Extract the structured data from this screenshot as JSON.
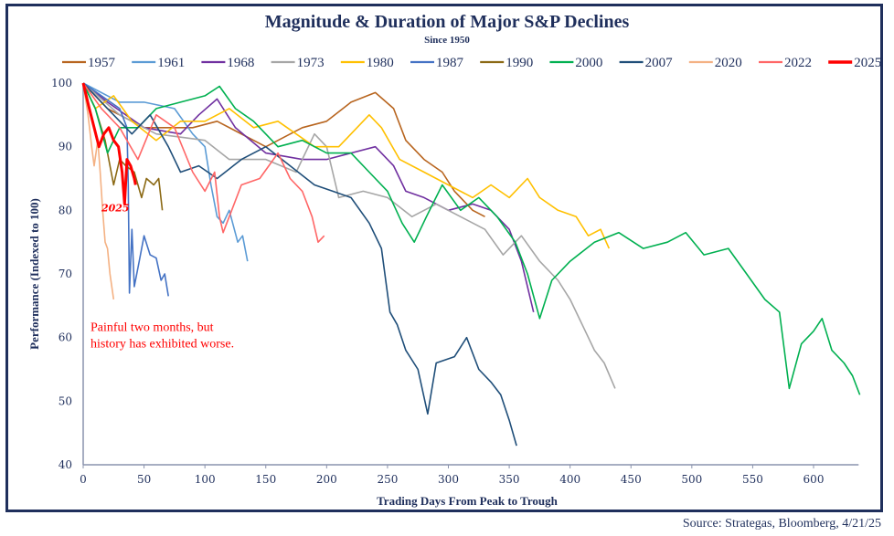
{
  "chart_data": {
    "type": "line",
    "title": "Magnitude & Duration of Major S&P Declines",
    "subtitle": "Since 1950",
    "xlabel": "Trading Days From Peak to Trough",
    "ylabel": "Performance (Indexed to 100)",
    "xlim": [
      0,
      637
    ],
    "ylim": [
      40,
      100
    ],
    "xticks": [
      0,
      50,
      100,
      150,
      200,
      250,
      300,
      350,
      400,
      450,
      500,
      550,
      600
    ],
    "yticks": [
      40,
      50,
      60,
      70,
      80,
      90,
      100
    ],
    "grid": false,
    "legend_position": "top",
    "series": [
      {
        "name": "1957",
        "color": "#b8651f",
        "width": 1.6,
        "points": [
          [
            0,
            100
          ],
          [
            20,
            96
          ],
          [
            50,
            93
          ],
          [
            90,
            93
          ],
          [
            110,
            94
          ],
          [
            150,
            90
          ],
          [
            180,
            93
          ],
          [
            200,
            94
          ],
          [
            220,
            97
          ],
          [
            240,
            98.5
          ],
          [
            255,
            96
          ],
          [
            265,
            91
          ],
          [
            280,
            88
          ],
          [
            295,
            86
          ],
          [
            305,
            83
          ],
          [
            320,
            80
          ],
          [
            330,
            79
          ]
        ]
      },
      {
        "name": "1961",
        "color": "#5b9bd5",
        "width": 1.6,
        "points": [
          [
            0,
            100
          ],
          [
            30,
            97
          ],
          [
            50,
            97
          ],
          [
            75,
            96
          ],
          [
            90,
            92
          ],
          [
            100,
            90
          ],
          [
            105,
            84
          ],
          [
            110,
            79
          ],
          [
            115,
            78
          ],
          [
            120,
            80
          ],
          [
            127,
            75
          ],
          [
            131,
            76
          ],
          [
            135,
            72
          ]
        ]
      },
      {
        "name": "1968",
        "color": "#7030a0",
        "width": 1.6,
        "points": [
          [
            0,
            100
          ],
          [
            20,
            97
          ],
          [
            50,
            93
          ],
          [
            80,
            92
          ],
          [
            95,
            95
          ],
          [
            110,
            97.5
          ],
          [
            125,
            93
          ],
          [
            150,
            89
          ],
          [
            180,
            88
          ],
          [
            200,
            88
          ],
          [
            220,
            89
          ],
          [
            240,
            90
          ],
          [
            255,
            87
          ],
          [
            265,
            83
          ],
          [
            280,
            82
          ],
          [
            300,
            80
          ],
          [
            320,
            81
          ],
          [
            335,
            80
          ],
          [
            350,
            77
          ],
          [
            360,
            72
          ],
          [
            370,
            64
          ]
        ]
      },
      {
        "name": "1973",
        "color": "#a6a6a6",
        "width": 1.6,
        "points": [
          [
            0,
            100
          ],
          [
            30,
            95
          ],
          [
            60,
            92
          ],
          [
            100,
            91
          ],
          [
            120,
            88
          ],
          [
            150,
            88
          ],
          [
            175,
            86
          ],
          [
            190,
            92
          ],
          [
            200,
            90
          ],
          [
            210,
            82
          ],
          [
            230,
            83
          ],
          [
            250,
            82
          ],
          [
            270,
            79
          ],
          [
            290,
            81
          ],
          [
            310,
            79
          ],
          [
            330,
            77
          ],
          [
            345,
            73
          ],
          [
            360,
            76
          ],
          [
            375,
            72
          ],
          [
            390,
            69
          ],
          [
            400,
            66
          ],
          [
            410,
            62
          ],
          [
            420,
            58
          ],
          [
            428,
            56
          ],
          [
            437,
            52
          ]
        ]
      },
      {
        "name": "1980",
        "color": "#ffc000",
        "width": 1.6,
        "points": [
          [
            0,
            100
          ],
          [
            10,
            96
          ],
          [
            25,
            98
          ],
          [
            40,
            94
          ],
          [
            60,
            91
          ],
          [
            80,
            94
          ],
          [
            100,
            94
          ],
          [
            120,
            96
          ],
          [
            140,
            93
          ],
          [
            160,
            94
          ],
          [
            175,
            92
          ],
          [
            190,
            90
          ],
          [
            210,
            90
          ],
          [
            220,
            92
          ],
          [
            235,
            95
          ],
          [
            245,
            93
          ],
          [
            260,
            88
          ],
          [
            280,
            86
          ],
          [
            300,
            84
          ],
          [
            320,
            82
          ],
          [
            335,
            84
          ],
          [
            350,
            82
          ],
          [
            365,
            85
          ],
          [
            375,
            82
          ],
          [
            390,
            80
          ],
          [
            405,
            79
          ],
          [
            415,
            76
          ],
          [
            425,
            77
          ],
          [
            432,
            74
          ]
        ]
      },
      {
        "name": "1987",
        "color": "#4472c4",
        "width": 1.6,
        "points": [
          [
            0,
            100
          ],
          [
            15,
            98
          ],
          [
            30,
            96
          ],
          [
            36,
            93
          ],
          [
            37,
            84
          ],
          [
            38,
            67
          ],
          [
            40,
            77
          ],
          [
            42,
            68
          ],
          [
            46,
            72
          ],
          [
            50,
            76
          ],
          [
            55,
            73
          ],
          [
            60,
            72.5
          ],
          [
            64,
            69
          ],
          [
            67,
            70
          ],
          [
            70,
            66.5
          ]
        ]
      },
      {
        "name": "1990",
        "color": "#8b6914",
        "width": 1.6,
        "points": [
          [
            0,
            100
          ],
          [
            10,
            96
          ],
          [
            18,
            91
          ],
          [
            25,
            84
          ],
          [
            30,
            88
          ],
          [
            35,
            87
          ],
          [
            42,
            86
          ],
          [
            48,
            82
          ],
          [
            52,
            85
          ],
          [
            58,
            84
          ],
          [
            62,
            85
          ],
          [
            65,
            80
          ]
        ]
      },
      {
        "name": "2000",
        "color": "#00b050",
        "width": 1.6,
        "points": [
          [
            0,
            100
          ],
          [
            10,
            96
          ],
          [
            20,
            89
          ],
          [
            30,
            93
          ],
          [
            45,
            93
          ],
          [
            60,
            96
          ],
          [
            80,
            97
          ],
          [
            100,
            98
          ],
          [
            112,
            99.5
          ],
          [
            125,
            96
          ],
          [
            140,
            94
          ],
          [
            160,
            90
          ],
          [
            180,
            91
          ],
          [
            200,
            89
          ],
          [
            220,
            89
          ],
          [
            235,
            86
          ],
          [
            250,
            83
          ],
          [
            262,
            78
          ],
          [
            272,
            75
          ],
          [
            282,
            79
          ],
          [
            295,
            84
          ],
          [
            310,
            80
          ],
          [
            325,
            82
          ],
          [
            340,
            79
          ],
          [
            355,
            75
          ],
          [
            365,
            70
          ],
          [
            375,
            63
          ],
          [
            385,
            69
          ],
          [
            400,
            72
          ],
          [
            420,
            75
          ],
          [
            440,
            76.5
          ],
          [
            460,
            74
          ],
          [
            480,
            75
          ],
          [
            495,
            76.5
          ],
          [
            510,
            73
          ],
          [
            530,
            74
          ],
          [
            545,
            70
          ],
          [
            560,
            66
          ],
          [
            572,
            64
          ],
          [
            580,
            52
          ],
          [
            590,
            59
          ],
          [
            600,
            61
          ],
          [
            607,
            63
          ],
          [
            615,
            58
          ],
          [
            625,
            56
          ],
          [
            632,
            54
          ],
          [
            638,
            51
          ]
        ]
      },
      {
        "name": "2007",
        "color": "#1f4e79",
        "width": 1.6,
        "points": [
          [
            0,
            100
          ],
          [
            20,
            96
          ],
          [
            40,
            92
          ],
          [
            55,
            95
          ],
          [
            70,
            90
          ],
          [
            80,
            86
          ],
          [
            95,
            87
          ],
          [
            110,
            85
          ],
          [
            130,
            88
          ],
          [
            150,
            90
          ],
          [
            170,
            87
          ],
          [
            190,
            84
          ],
          [
            205,
            83
          ],
          [
            220,
            82
          ],
          [
            235,
            78
          ],
          [
            245,
            74
          ],
          [
            252,
            64
          ],
          [
            258,
            62
          ],
          [
            265,
            58
          ],
          [
            275,
            55
          ],
          [
            283,
            48
          ],
          [
            290,
            56
          ],
          [
            305,
            57
          ],
          [
            315,
            60
          ],
          [
            325,
            55
          ],
          [
            335,
            53
          ],
          [
            343,
            51
          ],
          [
            350,
            47
          ],
          [
            356,
            43
          ]
        ]
      },
      {
        "name": "2020",
        "color": "#f4b183",
        "width": 1.6,
        "points": [
          [
            0,
            100
          ],
          [
            4,
            95
          ],
          [
            7,
            90
          ],
          [
            9,
            87
          ],
          [
            12,
            91
          ],
          [
            14,
            86
          ],
          [
            16,
            80
          ],
          [
            18,
            75
          ],
          [
            20,
            74
          ],
          [
            22,
            70
          ],
          [
            25,
            66
          ]
        ]
      },
      {
        "name": "2022",
        "color": "#ff6666",
        "width": 1.6,
        "points": [
          [
            0,
            100
          ],
          [
            15,
            96
          ],
          [
            30,
            93
          ],
          [
            45,
            88
          ],
          [
            60,
            95
          ],
          [
            75,
            93
          ],
          [
            90,
            86
          ],
          [
            100,
            83
          ],
          [
            108,
            86
          ],
          [
            112,
            79
          ],
          [
            115,
            76.5
          ],
          [
            122,
            80
          ],
          [
            130,
            84
          ],
          [
            145,
            85
          ],
          [
            160,
            89
          ],
          [
            170,
            85
          ],
          [
            180,
            83
          ],
          [
            188,
            79
          ],
          [
            193,
            75
          ],
          [
            198,
            76
          ]
        ]
      },
      {
        "name": "2025",
        "color": "#ff0000",
        "width": 3,
        "points": [
          [
            0,
            100
          ],
          [
            5,
            96
          ],
          [
            9,
            93
          ],
          [
            13,
            90
          ],
          [
            17,
            92
          ],
          [
            21,
            93
          ],
          [
            25,
            91
          ],
          [
            29,
            90
          ],
          [
            32,
            86
          ],
          [
            34,
            81
          ],
          [
            36,
            88
          ],
          [
            39,
            87
          ],
          [
            42,
            85
          ],
          [
            43,
            84
          ]
        ]
      }
    ],
    "annotations": [
      {
        "text": "2025",
        "color": "#ff0000",
        "x": 15,
        "y": 79.8
      },
      {
        "text": "Painful two months, but history has exhibited worse.",
        "lines": [
          "Painful two months, but",
          "history has exhibited worse."
        ],
        "color": "#ff0000",
        "x": 6,
        "y": 61
      }
    ]
  },
  "source": "Source: Strategas, Bloomberg, 4/21/25"
}
